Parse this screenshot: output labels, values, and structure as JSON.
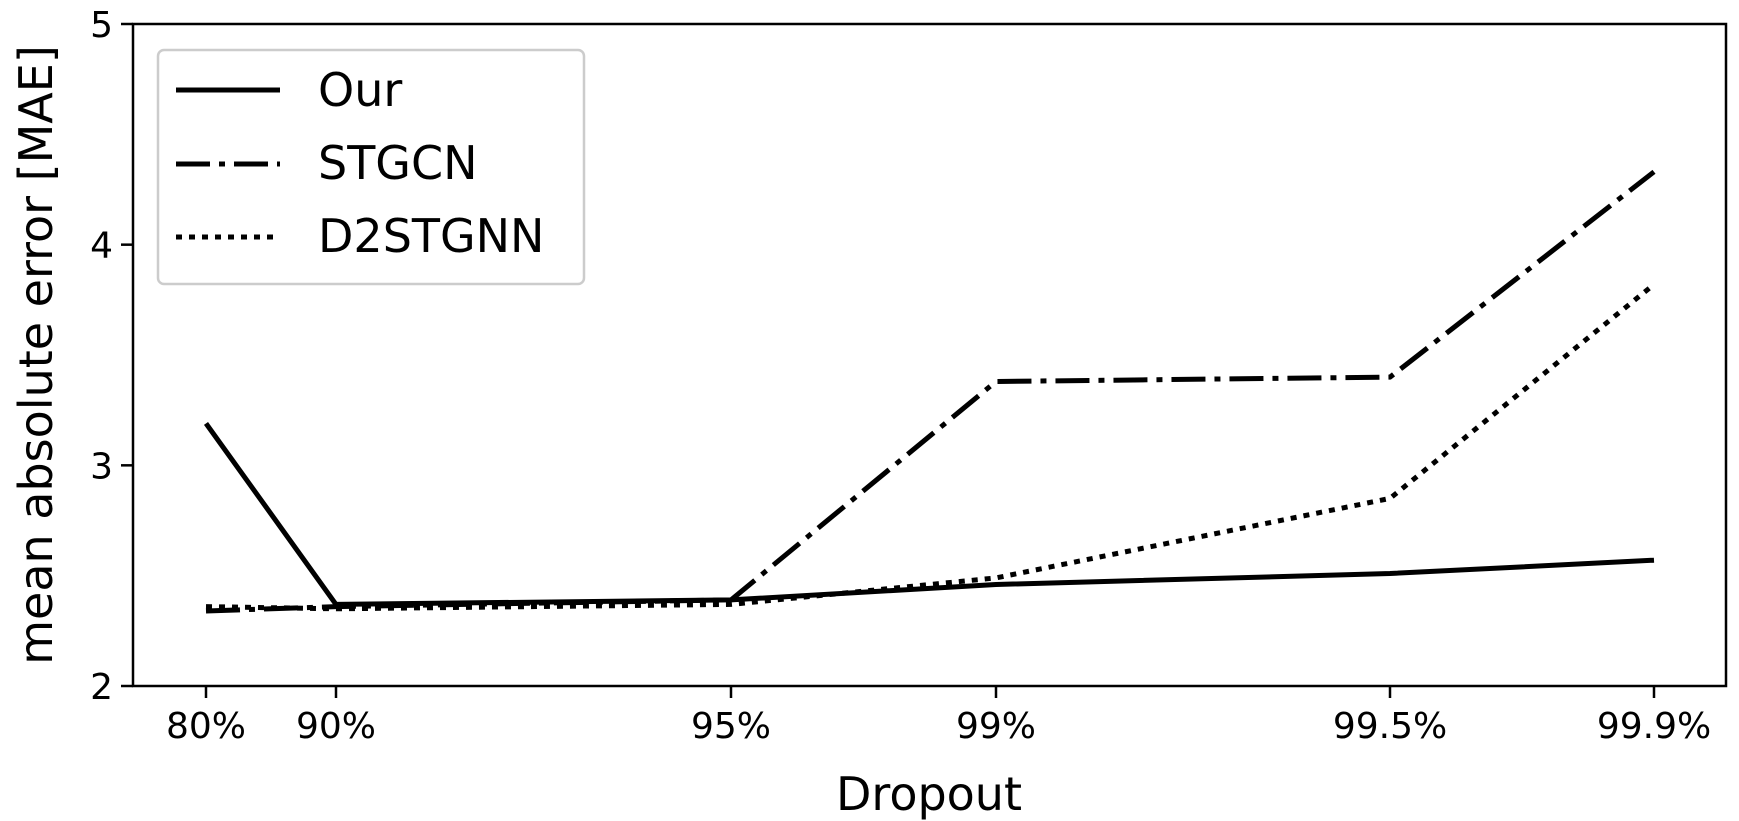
{
  "chart_data": {
    "type": "line",
    "categories": [
      "80%",
      "90%",
      "95%",
      "99%",
      "99.5%",
      "99.9%"
    ],
    "x": [
      80,
      90,
      95,
      99,
      99.5,
      99.9
    ],
    "xlabel": "Dropout",
    "ylabel": "mean absolute error [MAE]",
    "ylim": [
      2,
      5
    ],
    "yticks": [
      "2",
      "3",
      "4",
      "5"
    ],
    "grid": false,
    "legend_position": "top-left",
    "series": [
      {
        "name": "Our",
        "style": "solid",
        "values": [
          3.19,
          2.37,
          2.39,
          2.46,
          2.51,
          2.57
        ]
      },
      {
        "name": "STGCN",
        "style": "dashdot",
        "values": [
          2.34,
          2.36,
          2.39,
          3.38,
          3.4,
          4.33
        ]
      },
      {
        "name": "D2STGNN",
        "style": "dotted",
        "values": [
          2.36,
          2.35,
          2.37,
          2.49,
          2.85,
          3.82
        ]
      }
    ]
  }
}
